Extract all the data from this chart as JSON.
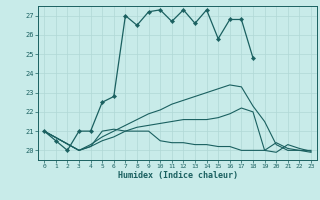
{
  "xlabel": "Humidex (Indice chaleur)",
  "bg_color": "#c8ebe9",
  "grid_color": "#b0d8d6",
  "line_color": "#1a6060",
  "xlim": [
    -0.5,
    23.5
  ],
  "ylim": [
    19.5,
    27.5
  ],
  "yticks": [
    20,
    21,
    22,
    23,
    24,
    25,
    26,
    27
  ],
  "line_main": {
    "x": [
      0,
      1,
      2,
      3,
      4,
      5,
      6,
      7,
      8,
      9,
      10,
      11,
      12,
      13,
      14,
      15,
      16,
      17,
      18
    ],
    "y": [
      21.0,
      20.5,
      20.0,
      21.0,
      21.0,
      22.5,
      22.8,
      27.0,
      26.5,
      27.2,
      27.3,
      26.7,
      27.3,
      26.6,
      27.3,
      25.8,
      26.8,
      26.8,
      24.8
    ]
  },
  "line2": {
    "x": [
      0,
      3,
      4,
      5,
      6,
      7,
      8,
      9,
      10,
      11,
      12,
      13,
      14,
      15,
      16,
      17,
      18,
      19,
      20,
      21,
      22,
      23
    ],
    "y": [
      21.0,
      20.0,
      20.3,
      20.7,
      21.0,
      21.3,
      21.6,
      21.9,
      22.1,
      22.4,
      22.6,
      22.8,
      23.0,
      23.2,
      23.4,
      23.3,
      22.3,
      21.5,
      20.3,
      20.0,
      20.0,
      20.0
    ]
  },
  "line3": {
    "x": [
      0,
      3,
      4,
      5,
      6,
      7,
      8,
      9,
      10,
      11,
      12,
      13,
      14,
      15,
      16,
      17,
      18,
      19,
      20,
      21,
      22,
      23
    ],
    "y": [
      21.0,
      20.0,
      20.2,
      20.5,
      20.7,
      21.0,
      21.2,
      21.3,
      21.4,
      21.5,
      21.6,
      21.6,
      21.6,
      21.7,
      21.9,
      22.2,
      22.0,
      20.0,
      19.9,
      20.3,
      20.1,
      19.95
    ]
  },
  "line4": {
    "x": [
      0,
      3,
      4,
      5,
      6,
      7,
      8,
      9,
      10,
      11,
      12,
      13,
      14,
      15,
      16,
      17,
      18,
      19,
      20,
      21,
      22,
      23
    ],
    "y": [
      21.0,
      20.0,
      20.2,
      21.0,
      21.1,
      21.0,
      21.0,
      21.0,
      20.5,
      20.4,
      20.4,
      20.3,
      20.3,
      20.2,
      20.2,
      20.0,
      20.0,
      20.0,
      20.4,
      20.1,
      20.0,
      19.9
    ]
  }
}
